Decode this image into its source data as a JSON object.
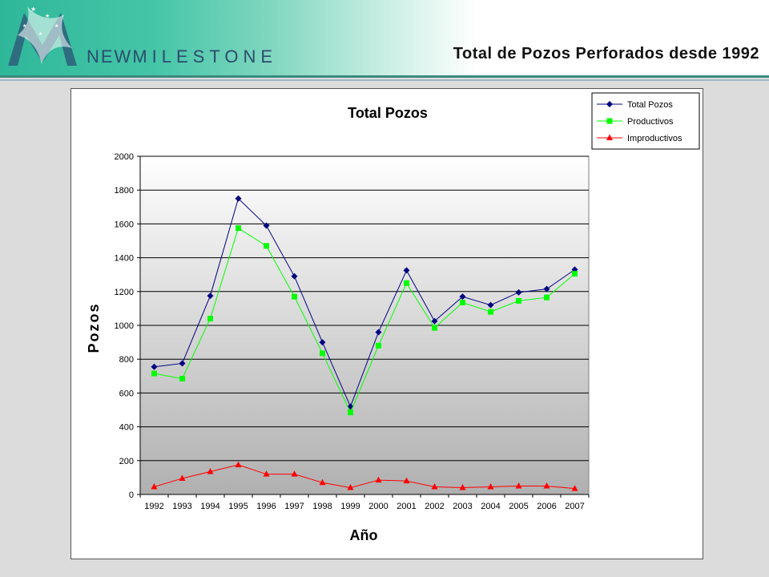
{
  "header": {
    "brand_new": "NEW",
    "brand_milestone": "MILESTONE",
    "slide_title": "Total de Pozos Perforados desde  1992"
  },
  "colors": {
    "total": "#000080",
    "productivos": "#00ff00",
    "improductivos": "#ff0000",
    "header_teal": "#2fb79a"
  },
  "icons": {
    "logo": "milestone-m-logo"
  },
  "chart_data": {
    "type": "line",
    "title": "Total Pozos",
    "xlabel": "Año",
    "ylabel": "Pozos",
    "categories": [
      "1992",
      "1993",
      "1994",
      "1995",
      "1996",
      "1997",
      "1998",
      "1999",
      "2000",
      "2001",
      "2002",
      "2003",
      "2004",
      "2005",
      "2006",
      "2007"
    ],
    "ylim": [
      0,
      2000
    ],
    "yticks": [
      0,
      200,
      400,
      600,
      800,
      1000,
      1200,
      1400,
      1600,
      1800,
      2000
    ],
    "grid": true,
    "legend_position": "top-right",
    "series": [
      {
        "name": "Total Pozos",
        "marker": "diamond",
        "color": "#000080",
        "values": [
          755,
          775,
          1175,
          1750,
          1590,
          1290,
          900,
          520,
          960,
          1325,
          1025,
          1170,
          1120,
          1195,
          1215,
          1330
        ]
      },
      {
        "name": "Productivos",
        "marker": "square",
        "color": "#00ff00",
        "values": [
          715,
          685,
          1040,
          1575,
          1470,
          1170,
          835,
          485,
          880,
          1250,
          985,
          1135,
          1080,
          1145,
          1165,
          1305
        ]
      },
      {
        "name": "Improductivos",
        "marker": "triangle",
        "color": "#ff0000",
        "values": [
          45,
          95,
          135,
          175,
          120,
          120,
          70,
          40,
          85,
          80,
          45,
          40,
          45,
          50,
          50,
          35
        ]
      }
    ]
  }
}
